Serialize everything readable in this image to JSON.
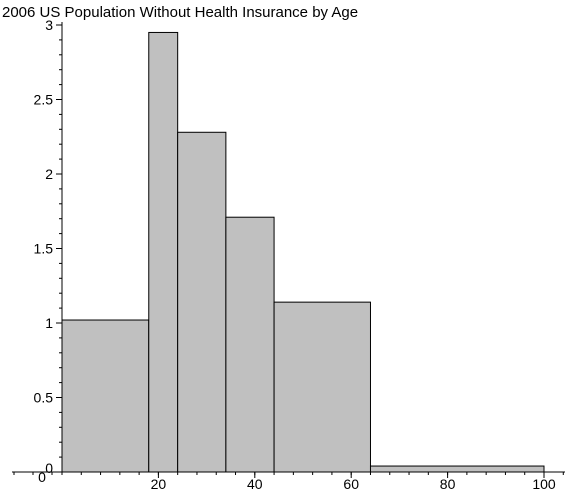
{
  "chart_data": {
    "type": "bar",
    "title": "2006 US Population Without Health Insurance by Age",
    "xlabel": "",
    "ylabel": "",
    "xlim": [
      0,
      105
    ],
    "ylim": [
      0,
      3
    ],
    "x_ticks": [
      "20",
      "40",
      "60",
      "80",
      "100"
    ],
    "y_ticks": [
      "0.5",
      "1",
      "1.5",
      "2",
      "2.5",
      "3"
    ],
    "origin_label": "0",
    "y_zero_label": "0",
    "bins": [
      {
        "x0": 0,
        "x1": 18,
        "value": 1.02
      },
      {
        "x0": 18,
        "x1": 24,
        "value": 2.95
      },
      {
        "x0": 24,
        "x1": 34,
        "value": 2.28
      },
      {
        "x0": 34,
        "x1": 44,
        "value": 1.71
      },
      {
        "x0": 44,
        "x1": 64,
        "value": 1.14
      },
      {
        "x0": 64,
        "x1": 100,
        "value": 0.04
      }
    ],
    "grid": false,
    "bar_color": "#c0c0c0"
  }
}
